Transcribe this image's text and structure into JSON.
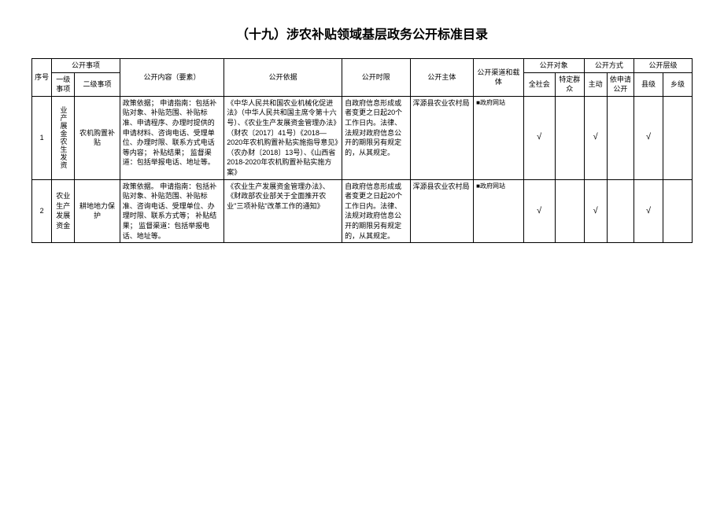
{
  "title": "（十九）涉农补贴领域基层政务公开标准目录",
  "headers": {
    "seq": "序号",
    "openItem": "公开事项",
    "level1": "一级事项",
    "level2": "二级事项",
    "content": "公开内容（要素）",
    "basis": "公开依据",
    "time": "公开时限",
    "subject": "公开主体",
    "channel": "公开渠道和载体",
    "target": "公开对象",
    "target1": "全社会",
    "target2": "特定群众",
    "method": "公开方式",
    "method1": "主动",
    "method2": "依申请公开",
    "level": "公开层级",
    "levelA": "县级",
    "levelB": "乡级"
  },
  "rows": [
    {
      "seq": "1",
      "l1": "业产展金农生发资",
      "l2": "农机购置补贴",
      "content": "政策依据；\n申请指南：包括补贴对象、补贴范围、补贴标准、申请程序、办理时提供的申请材料、咨询电话、受理单位、办理时限、联系方式电话等内容；\n补贴结果；\n监督渠道：包括举报电话、地址等。",
      "basis": "《中华人民共和国农业机械化促进法》（中华人民共和国主席令第十六号）、《农业生产发展资金管理办法》（财农〔2017〕41号）《2018—2020年农机购置补贴实施指导意见》（农办财〔2018〕13号）、《山西省2018-2020年农机购置补贴实施方案》",
      "time": "自政府信息形成或者变更之日起20个工作日内。法律、法规对政府信息公开的期限另有规定的，从其规定。",
      "subject": "浑源县农业农村局",
      "channel": "■政府网站",
      "checks": {
        "t1": "√",
        "t2": "",
        "m1": "√",
        "m2": "",
        "la": "√",
        "lb": ""
      }
    },
    {
      "seq": "2",
      "l1": "农业生产发展资金",
      "l2": "耕地地力保护",
      "content": "政策依据。\n申请指南：包括补贴对象、补贴范围、补贴标准、咨询电话、受理单位、办理时限、联系方式等；\n补贴结果；\n监督渠道：包括举报电话、地址等。",
      "basis": "《农业生产发展资金管理办法》、《财政部农业部关于全面推开农业\"三项补贴\"改革工作的通知》",
      "time": "自政府信息形成或者变更之日起20个工作日内。法律、法规对政府信息公开的期限另有规定的，从其规定。",
      "subject": "浑源县农业农村局",
      "channel": "■政府网站",
      "checks": {
        "t1": "√",
        "t2": "",
        "m1": "√",
        "m2": "",
        "la": "√",
        "lb": ""
      }
    }
  ]
}
